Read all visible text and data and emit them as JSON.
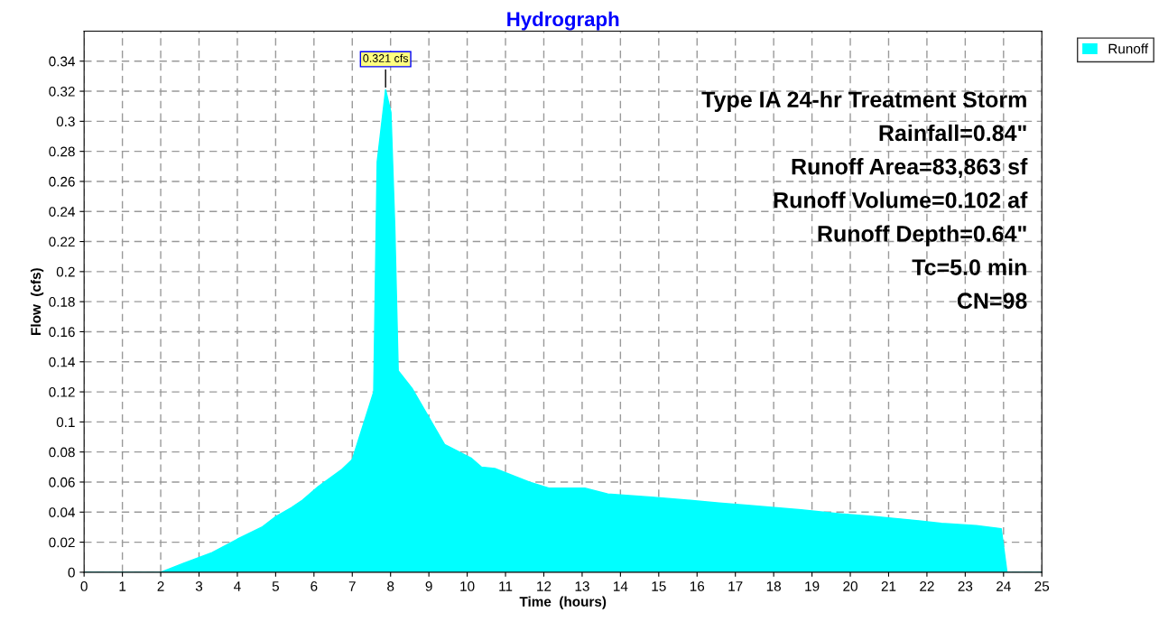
{
  "chart_data": {
    "type": "area",
    "title": "Hydrograph",
    "xlabel": "Time  (hours)",
    "ylabel": "Flow  (cfs)",
    "xlim": [
      0,
      25
    ],
    "xticks": [
      0,
      1,
      2,
      3,
      4,
      5,
      6,
      7,
      8,
      9,
      10,
      11,
      12,
      13,
      14,
      15,
      16,
      17,
      18,
      19,
      20,
      21,
      22,
      23,
      24,
      25
    ],
    "ylim": [
      0,
      0.36
    ],
    "yticks": [
      0,
      0.02,
      0.04,
      0.06,
      0.08,
      0.1,
      0.12,
      0.14,
      0.16,
      0.18,
      0.2,
      0.22,
      0.24,
      0.26,
      0.28,
      0.3,
      0.32,
      0.34
    ],
    "grid": true,
    "legend": "top right",
    "series": [
      {
        "name": "Runoff",
        "color": "#00ffff",
        "x": [
          0,
          2.0,
          2.6,
          3.34,
          4.0,
          4.64,
          5.0,
          5.41,
          5.7,
          6.11,
          6.71,
          7.0,
          7.56,
          7.65,
          7.87,
          8.01,
          8.11,
          8.2,
          8.57,
          9.41,
          10.1,
          10.37,
          10.72,
          11.62,
          12.13,
          12.52,
          13.07,
          13.67,
          14.24,
          14.82,
          15.74,
          16.58,
          17.32,
          18.72,
          19.68,
          20.64,
          21.49,
          22.38,
          23.29,
          23.94,
          24.09,
          25
        ],
        "values": [
          0,
          0,
          0.006,
          0.013,
          0.022,
          0.03,
          0.037,
          0.043,
          0.048,
          0.057,
          0.068,
          0.075,
          0.12,
          0.273,
          0.321,
          0.306,
          0.23,
          0.134,
          0.122,
          0.085,
          0.076,
          0.07,
          0.069,
          0.06,
          0.056,
          0.056,
          0.056,
          0.052,
          0.051,
          0.05,
          0.048,
          0.046,
          0.0445,
          0.0415,
          0.039,
          0.037,
          0.035,
          0.0325,
          0.031,
          0.029,
          0,
          0
        ]
      }
    ],
    "annotations": [
      {
        "text": "0.321 cfs",
        "x": 7.87,
        "y": 0.321
      },
      "Type IA 24-hr Treatment Storm",
      "Rainfall=0.84\"",
      "Runoff Area=83,863 sf",
      "Runoff Volume=0.102 af",
      "Runoff Depth=0.64\"",
      "Tc=5.0 min",
      "CN=98"
    ]
  }
}
